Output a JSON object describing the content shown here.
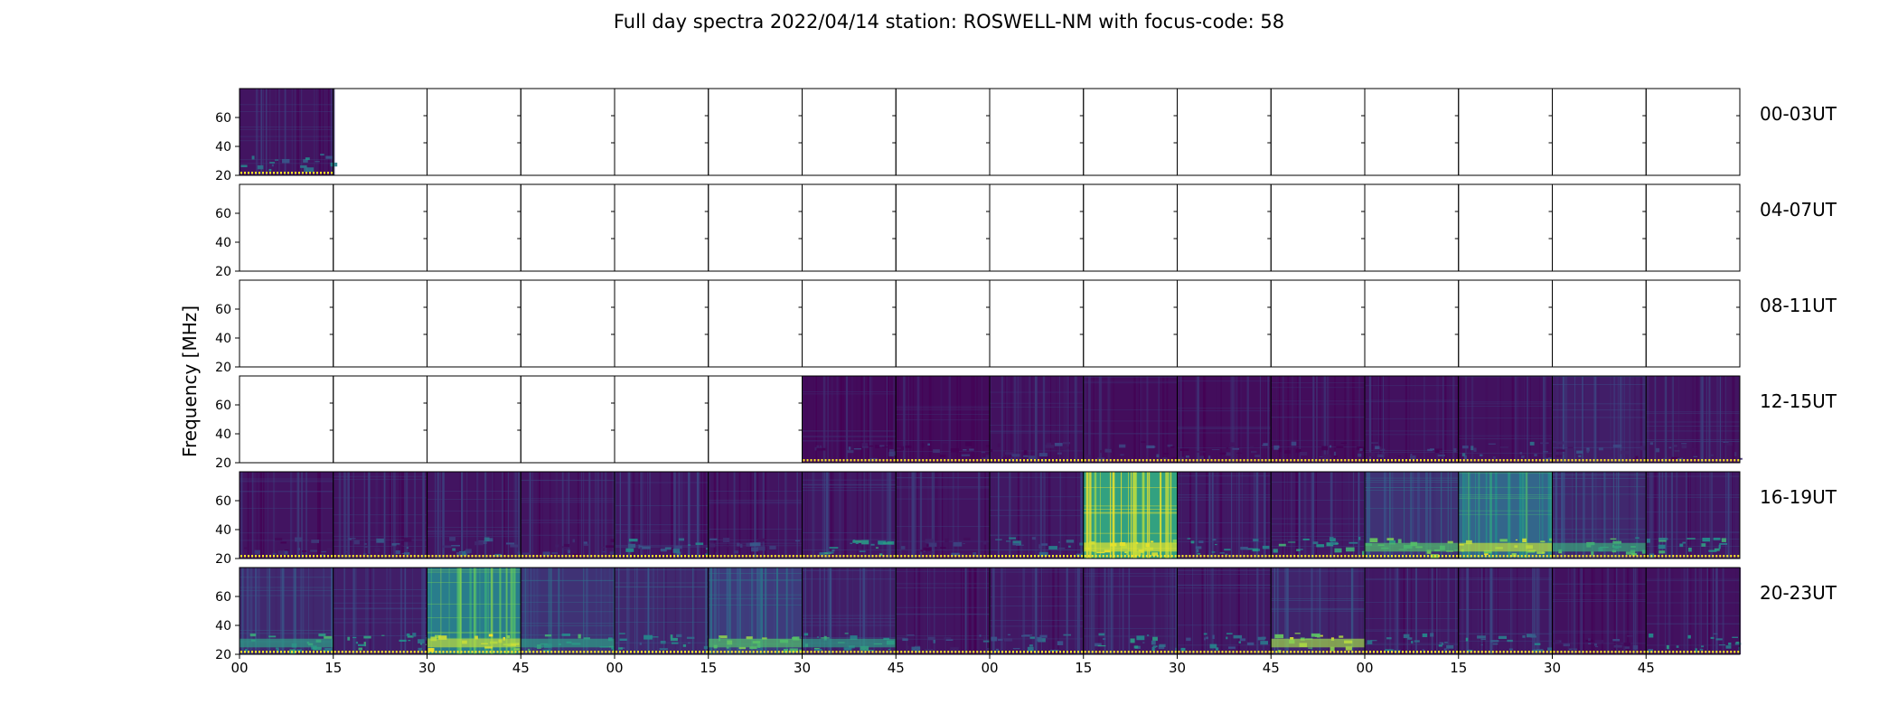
{
  "chart_data": {
    "type": "heatmap",
    "title": "Full day spectra 2022/04/14 station: ROSWELL-NM with focus-code: 58",
    "ylabel": "Frequency [MHz]",
    "yticks": [
      "20",
      "40",
      "60"
    ],
    "ylim": [
      20,
      80
    ],
    "xticks": [
      "00",
      "15",
      "30",
      "45",
      "00",
      "15",
      "30",
      "45",
      "00",
      "15",
      "30",
      "45",
      "00",
      "15",
      "30",
      "45"
    ],
    "row_labels": [
      "00-03UT",
      "04-07UT",
      "08-11UT",
      "12-15UT",
      "16-19UT",
      "20-23UT"
    ],
    "panels_per_row": 16,
    "colormap": [
      "#440154",
      "#3b528b",
      "#21918c",
      "#5ec962",
      "#fde725"
    ],
    "colormap_name": "viridis",
    "grid": false,
    "rows": [
      {
        "label": "00-03UT",
        "panels": [
          {
            "data": true,
            "level": 0.1,
            "band": 0.35
          },
          {
            "data": false
          },
          {
            "data": false
          },
          {
            "data": false
          },
          {
            "data": false
          },
          {
            "data": false
          },
          {
            "data": false
          },
          {
            "data": false
          },
          {
            "data": false
          },
          {
            "data": false
          },
          {
            "data": false
          },
          {
            "data": false
          },
          {
            "data": false
          },
          {
            "data": false
          },
          {
            "data": false
          },
          {
            "data": false
          }
        ]
      },
      {
        "label": "04-07UT",
        "panels": [
          {
            "data": false
          },
          {
            "data": false
          },
          {
            "data": false
          },
          {
            "data": false
          },
          {
            "data": false
          },
          {
            "data": false
          },
          {
            "data": false
          },
          {
            "data": false
          },
          {
            "data": false
          },
          {
            "data": false
          },
          {
            "data": false
          },
          {
            "data": false
          },
          {
            "data": false
          },
          {
            "data": false
          },
          {
            "data": false
          },
          {
            "data": false
          }
        ]
      },
      {
        "label": "08-11UT",
        "panels": [
          {
            "data": false
          },
          {
            "data": false
          },
          {
            "data": false
          },
          {
            "data": false
          },
          {
            "data": false
          },
          {
            "data": false
          },
          {
            "data": false
          },
          {
            "data": false
          },
          {
            "data": false
          },
          {
            "data": false
          },
          {
            "data": false
          },
          {
            "data": false
          },
          {
            "data": false
          },
          {
            "data": false
          },
          {
            "data": false
          },
          {
            "data": false
          }
        ]
      },
      {
        "label": "12-15UT",
        "panels": [
          {
            "data": false
          },
          {
            "data": false
          },
          {
            "data": false
          },
          {
            "data": false
          },
          {
            "data": false
          },
          {
            "data": false
          },
          {
            "data": true,
            "level": 0.05,
            "band": 0.1
          },
          {
            "data": true,
            "level": 0.05,
            "band": 0.1
          },
          {
            "data": true,
            "level": 0.08,
            "band": 0.1
          },
          {
            "data": true,
            "level": 0.06,
            "band": 0.1
          },
          {
            "data": true,
            "level": 0.06,
            "band": 0.1
          },
          {
            "data": true,
            "level": 0.06,
            "band": 0.1
          },
          {
            "data": true,
            "level": 0.08,
            "band": 0.1
          },
          {
            "data": true,
            "level": 0.08,
            "band": 0.25
          },
          {
            "data": true,
            "level": 0.15,
            "band": 0.15
          },
          {
            "data": true,
            "level": 0.1,
            "band": 0.1
          }
        ]
      },
      {
        "label": "16-19UT",
        "panels": [
          {
            "data": true,
            "level": 0.1,
            "band": 0.1
          },
          {
            "data": true,
            "level": 0.1,
            "band": 0.15
          },
          {
            "data": true,
            "level": 0.1,
            "band": 0.25
          },
          {
            "data": true,
            "level": 0.1,
            "band": 0.1
          },
          {
            "data": true,
            "level": 0.12,
            "band": 0.35
          },
          {
            "data": true,
            "level": 0.1,
            "band": 0.15
          },
          {
            "data": true,
            "level": 0.12,
            "band": 0.45
          },
          {
            "data": true,
            "level": 0.1,
            "band": 0.1
          },
          {
            "data": true,
            "level": 0.12,
            "band": 0.3
          },
          {
            "data": true,
            "level": 0.95,
            "band": 0.95
          },
          {
            "data": true,
            "level": 0.12,
            "band": 0.4
          },
          {
            "data": true,
            "level": 0.12,
            "band": 0.5
          },
          {
            "data": true,
            "level": 0.25,
            "band": 0.7
          },
          {
            "data": true,
            "level": 0.55,
            "band": 0.9
          },
          {
            "data": true,
            "level": 0.2,
            "band": 0.6
          },
          {
            "data": true,
            "level": 0.12,
            "band": 0.5
          }
        ]
      },
      {
        "label": "20-23UT",
        "panels": [
          {
            "data": true,
            "level": 0.2,
            "band": 0.55
          },
          {
            "data": true,
            "level": 0.15,
            "band": 0.5
          },
          {
            "data": true,
            "level": 0.7,
            "band": 0.9
          },
          {
            "data": true,
            "level": 0.25,
            "band": 0.55
          },
          {
            "data": true,
            "level": 0.2,
            "band": 0.4
          },
          {
            "data": true,
            "level": 0.3,
            "band": 0.7
          },
          {
            "data": true,
            "level": 0.15,
            "band": 0.55
          },
          {
            "data": true,
            "level": 0.1,
            "band": 0.2
          },
          {
            "data": true,
            "level": 0.12,
            "band": 0.3
          },
          {
            "data": true,
            "level": 0.12,
            "band": 0.4
          },
          {
            "data": true,
            "level": 0.12,
            "band": 0.35
          },
          {
            "data": true,
            "level": 0.18,
            "band": 0.85
          },
          {
            "data": true,
            "level": 0.12,
            "band": 0.35
          },
          {
            "data": true,
            "level": 0.12,
            "band": 0.4
          },
          {
            "data": true,
            "level": 0.08,
            "band": 0.1
          },
          {
            "data": true,
            "level": 0.08,
            "band": 0.4
          }
        ]
      }
    ]
  }
}
